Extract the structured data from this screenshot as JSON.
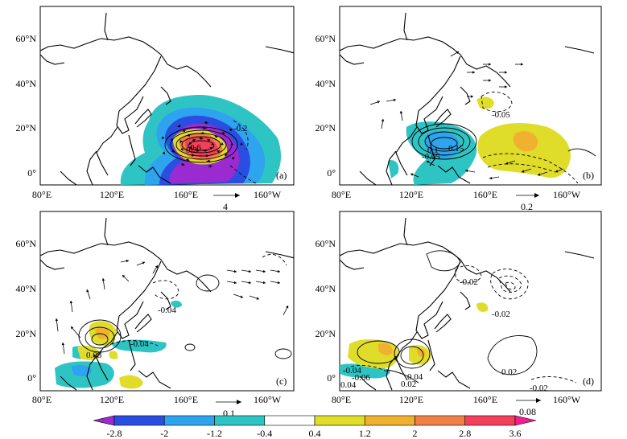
{
  "chart_data": {
    "type": "map",
    "layout": "2x2 panels",
    "longitude_ticks": [
      "80°E",
      "120°E",
      "160°E",
      "160°W"
    ],
    "latitude_ticks": [
      "60°N",
      "40°N",
      "20°N",
      "0°"
    ],
    "colorbar": {
      "ticks": [
        "-2.8",
        "-2",
        "-1.2",
        "-0.4",
        "0.4",
        "1.2",
        "2",
        "2.8",
        "3.6"
      ],
      "colors": [
        "#9b2bd0",
        "#2a4fe0",
        "#2fa4ee",
        "#2fc4c4",
        "#ffffff",
        "#e0dc2a",
        "#f0b030",
        "#f08048",
        "#f0405a",
        "#f01e90"
      ],
      "extend": "both"
    },
    "panels": [
      {
        "label": "(a)",
        "reference_vector": "4",
        "contour_labels": [
          "-0.2",
          "0.6",
          "0.2"
        ],
        "shading": [
          {
            "value": -0.8,
            "color": "#2fc4c4"
          },
          {
            "value": -1.6,
            "color": "#2fa4ee"
          },
          {
            "value": -2.4,
            "color": "#2a4fe0"
          },
          {
            "value": -3.0,
            "color": "#9b2bd0"
          },
          {
            "value": 0.8,
            "color": "#e0dc2a"
          },
          {
            "value": 2.4,
            "color": "#f08048"
          },
          {
            "value": 3.0,
            "color": "#f0405a"
          }
        ]
      },
      {
        "label": "(b)",
        "reference_vector": "0.2",
        "contour_labels": [
          "-0.05",
          "0.15",
          "0.1",
          "-0.05"
        ],
        "shading": [
          {
            "value": -0.8,
            "color": "#2fc4c4"
          },
          {
            "value": -1.6,
            "color": "#2fa4ee"
          },
          {
            "value": 0.8,
            "color": "#e0dc2a"
          },
          {
            "value": 1.6,
            "color": "#f0b030"
          }
        ]
      },
      {
        "label": "(c)",
        "reference_vector": "0.1",
        "contour_labels": [
          "-0.04",
          "-0.04",
          "0.08"
        ],
        "shading": [
          {
            "value": -0.8,
            "color": "#2fc4c4"
          },
          {
            "value": -1.6,
            "color": "#2fa4ee"
          },
          {
            "value": 0.8,
            "color": "#e0dc2a"
          },
          {
            "value": 1.6,
            "color": "#f0b030"
          }
        ]
      },
      {
        "label": "(d)",
        "reference_vector": "0.08",
        "contour_labels": [
          "-0.02",
          "-0.02",
          "0.02",
          "-0.02",
          "0.04",
          "-0.04",
          "-0.06",
          "0.02",
          "0.04"
        ],
        "shading": [
          {
            "value": -0.8,
            "color": "#2fc4c4"
          },
          {
            "value": 0.8,
            "color": "#e0dc2a"
          },
          {
            "value": 1.6,
            "color": "#f0b030"
          }
        ]
      }
    ]
  }
}
